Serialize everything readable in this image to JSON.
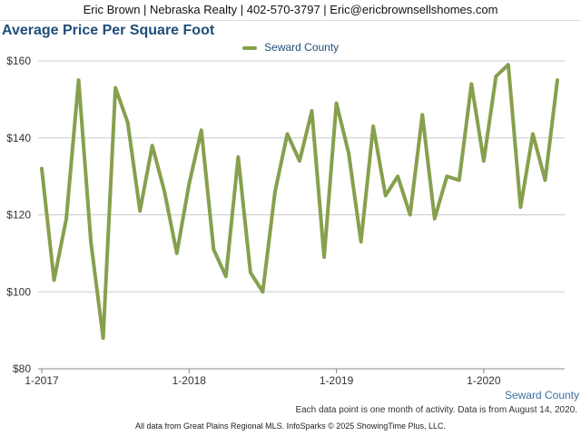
{
  "header": {
    "contact": "Eric Brown | Nebraska Realty | 402-570-3797 | Eric@ericbrownsellshomes.com"
  },
  "note": "Each data point is one month of activity. Data is from August 14, 2020.",
  "footer": "All data from Great Plains Regional MLS. InfoSparks © 2025 ShowingTime Plus, LLC.",
  "colors": {
    "series": "#86a04e",
    "grid": "#cccccc",
    "title": "#1f4e79"
  },
  "chart_data": {
    "type": "line",
    "title": "Average Price Per Square Foot",
    "xlabel": "Seward County",
    "ylabel": "",
    "ylim": [
      80,
      160
    ],
    "yticks": [
      "$80",
      "$100",
      "$120",
      "$140",
      "$160"
    ],
    "ytick_values": [
      80,
      100,
      120,
      140,
      160
    ],
    "xticks": [
      "1-2017",
      "1-2018",
      "1-2019",
      "1-2020"
    ],
    "xtick_indices": [
      0,
      12,
      24,
      36
    ],
    "grid": true,
    "legend": "top-center",
    "x": [
      "1-2017",
      "2-2017",
      "3-2017",
      "4-2017",
      "5-2017",
      "6-2017",
      "7-2017",
      "8-2017",
      "9-2017",
      "10-2017",
      "11-2017",
      "12-2017",
      "1-2018",
      "2-2018",
      "3-2018",
      "4-2018",
      "5-2018",
      "6-2018",
      "7-2018",
      "8-2018",
      "9-2018",
      "10-2018",
      "11-2018",
      "12-2018",
      "1-2019",
      "2-2019",
      "3-2019",
      "4-2019",
      "5-2019",
      "6-2019",
      "7-2019",
      "8-2019",
      "9-2019",
      "10-2019",
      "11-2019",
      "12-2019",
      "1-2020",
      "2-2020",
      "3-2020",
      "4-2020",
      "5-2020",
      "6-2020",
      "7-2020"
    ],
    "series": [
      {
        "name": "Seward County",
        "values": [
          132,
          103,
          119,
          155,
          113,
          88,
          153,
          144,
          121,
          138,
          126,
          110,
          128,
          142,
          111,
          104,
          135,
          105,
          100,
          126,
          141,
          134,
          147,
          109,
          149,
          136,
          113,
          143,
          125,
          130,
          120,
          146,
          119,
          130,
          129,
          154,
          134,
          156,
          159,
          122,
          141,
          129,
          155
        ]
      }
    ]
  }
}
